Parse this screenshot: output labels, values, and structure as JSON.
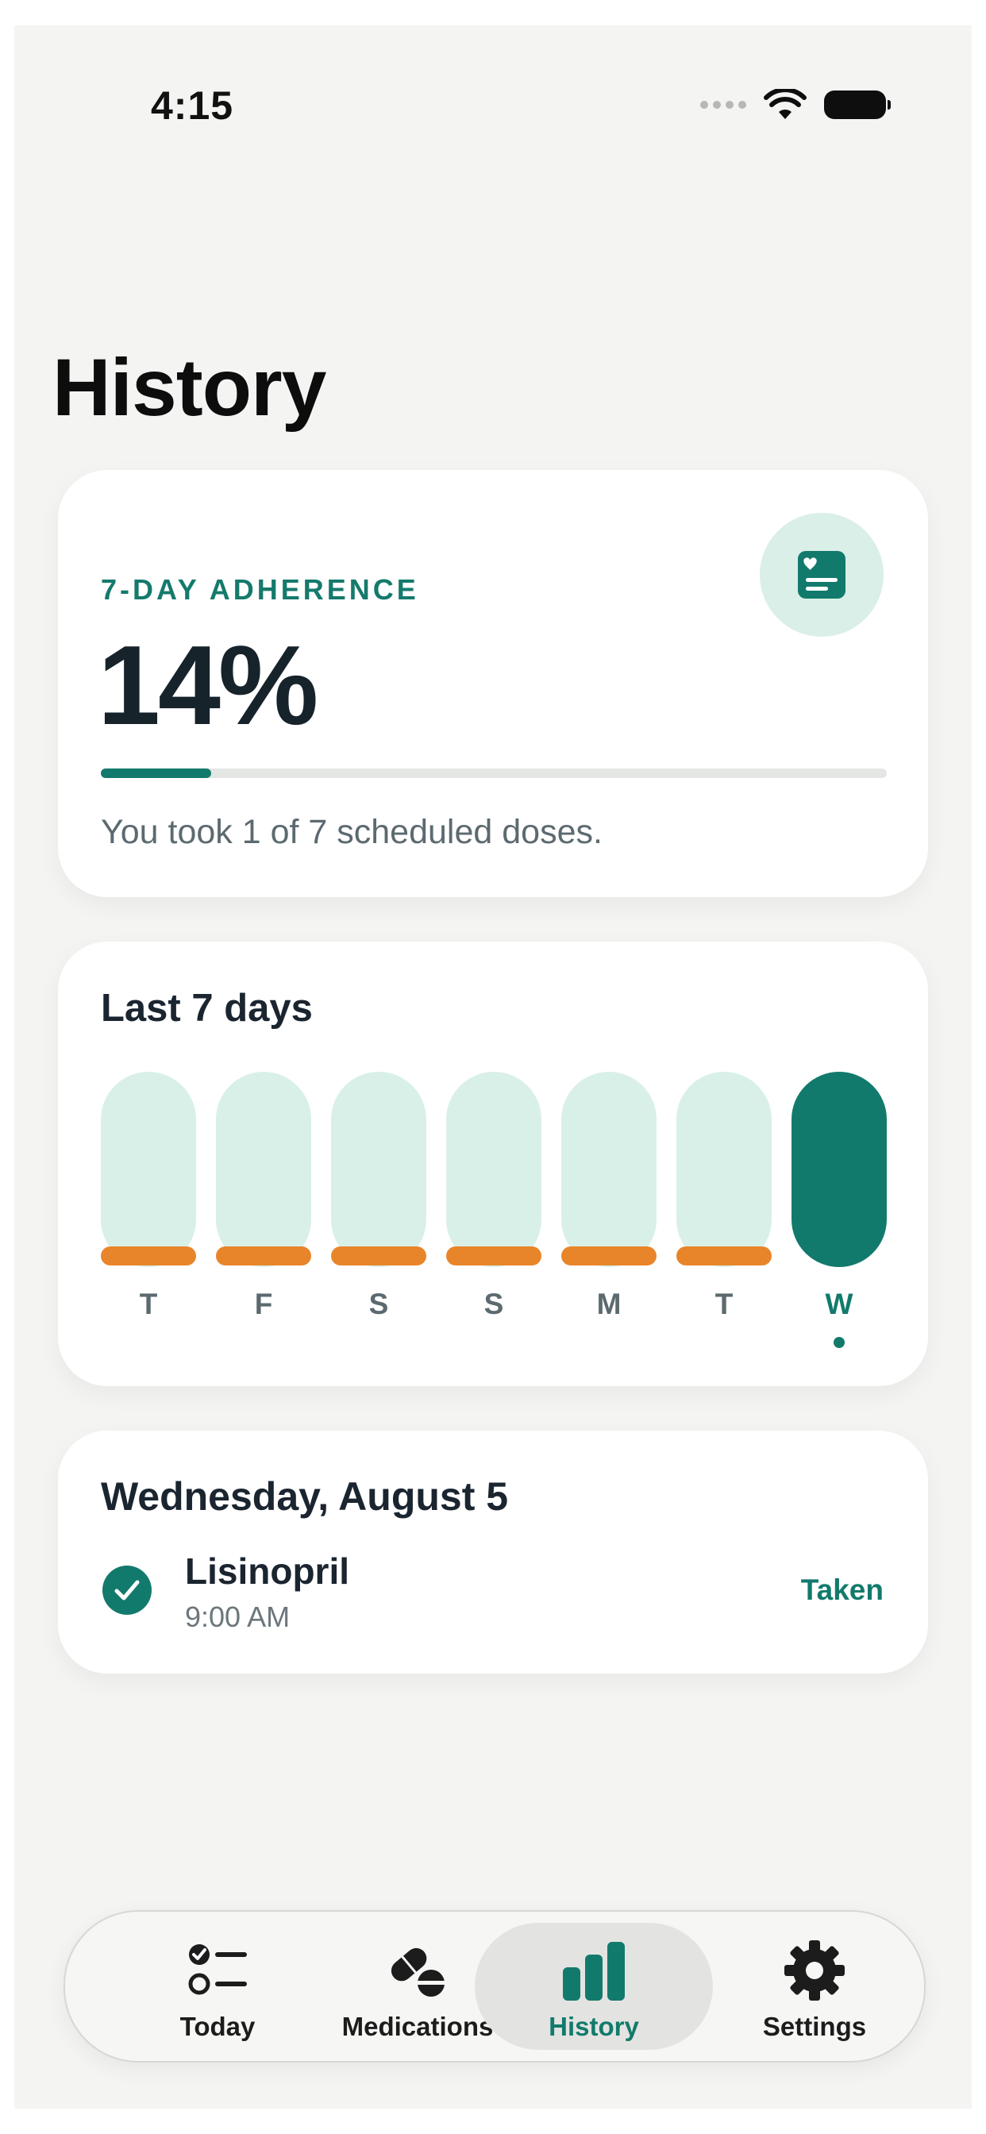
{
  "status_bar": {
    "time": "4:15",
    "icons": [
      "signal-dots-icon",
      "wifi-icon",
      "battery-icon"
    ]
  },
  "page": {
    "title": "History"
  },
  "adherence_card": {
    "label": "7-DAY ADHERENCE",
    "value": "14%",
    "progress_fraction": 0.14,
    "summary": "You took 1 of 7 scheduled doses.",
    "icon": "medical-card-icon"
  },
  "week_card": {
    "title": "Last 7 days",
    "days": [
      {
        "letter": "T",
        "taken": false,
        "missed": true
      },
      {
        "letter": "F",
        "taken": false,
        "missed": true
      },
      {
        "letter": "S",
        "taken": false,
        "missed": true
      },
      {
        "letter": "S",
        "taken": false,
        "missed": true
      },
      {
        "letter": "M",
        "taken": false,
        "missed": true
      },
      {
        "letter": "T",
        "taken": false,
        "missed": true
      },
      {
        "letter": "W",
        "taken": true,
        "missed": false,
        "today": true
      }
    ]
  },
  "day_detail": {
    "date": "Wednesday, August 5",
    "doses": [
      {
        "name": "Lisinopril",
        "time": "9:00 AM",
        "status": "Taken",
        "icon": "check-circle-icon"
      }
    ]
  },
  "tab_bar": {
    "tabs": [
      {
        "label": "Today",
        "icon": "checklist-icon"
      },
      {
        "label": "Medications",
        "icon": "pills-icon"
      },
      {
        "label": "History",
        "icon": "bar-chart-icon",
        "active": true
      },
      {
        "label": "Settings",
        "icon": "gear-icon"
      }
    ]
  },
  "colors": {
    "accent": "#127a6c",
    "accent_light": "#d9f0e8",
    "missed": "#e8852a",
    "background": "#f4f5f2"
  }
}
